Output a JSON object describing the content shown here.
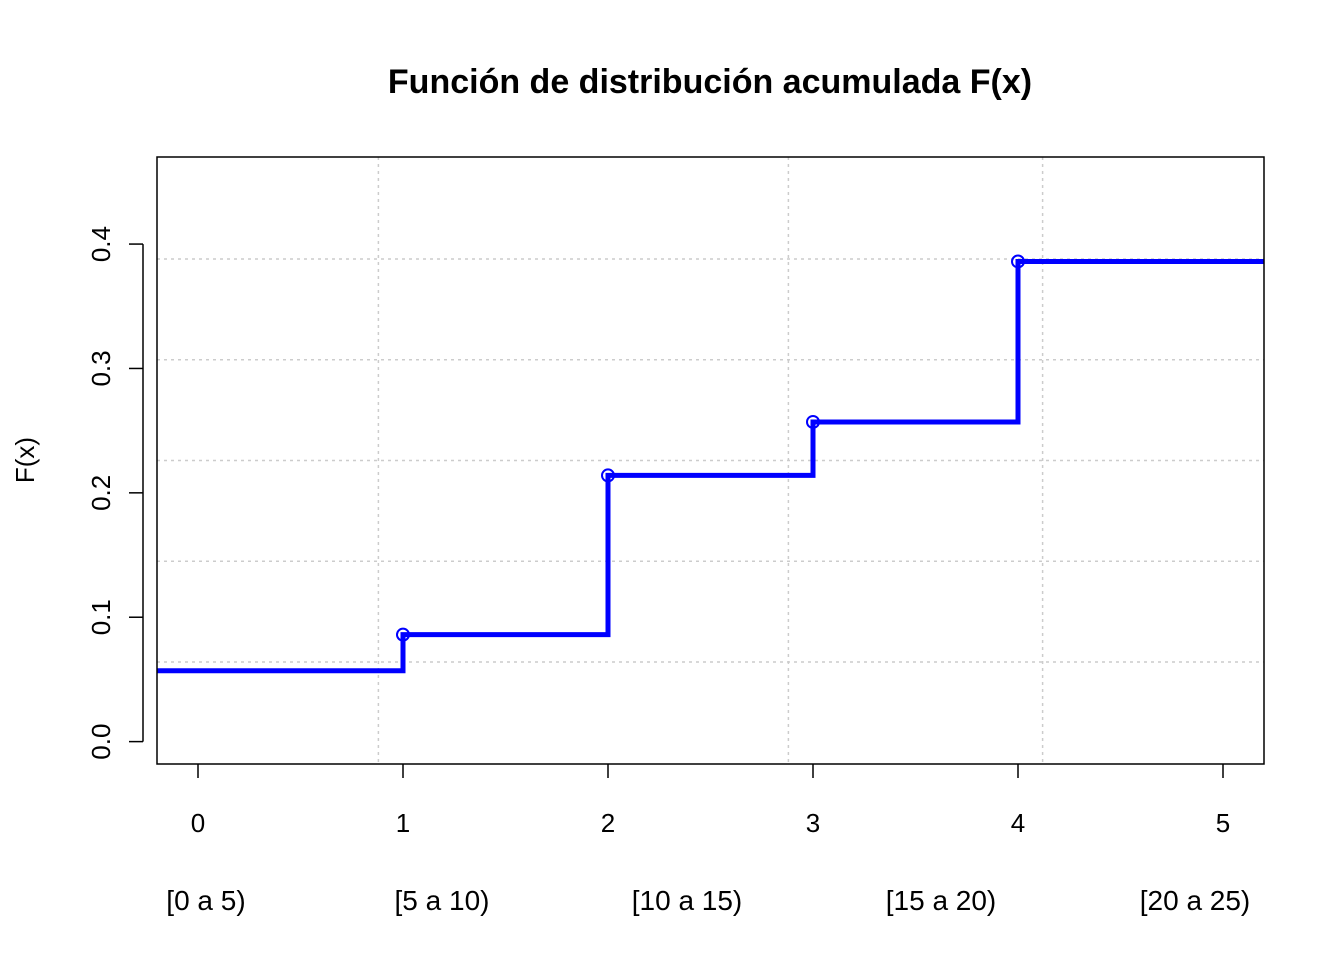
{
  "chart_data": {
    "type": "line",
    "step": true,
    "title": "Función de distribución acumulada F(x)",
    "xlabel": "",
    "ylabel": "F(x)",
    "xlim": [
      -0.2,
      5.2
    ],
    "ylim": [
      -0.018,
      0.47
    ],
    "x_ticks": [
      "0",
      "1",
      "2",
      "3",
      "4",
      "5"
    ],
    "y_ticks": [
      "0.0",
      "0.1",
      "0.2",
      "0.3",
      "0.4"
    ],
    "categories": [
      "[0 a 5)",
      "[5 a 10)",
      "[10 a 15)",
      "[15 a 20)",
      "[20 a 25)"
    ],
    "grid": true,
    "color": "#0000ff",
    "points": [
      {
        "x": 1,
        "y": 0.086
      },
      {
        "x": 2,
        "y": 0.214
      },
      {
        "x": 3,
        "y": 0.257
      },
      {
        "x": 4,
        "y": 0.386
      }
    ],
    "start_value": 0.057,
    "series": [
      {
        "x": [
          0,
          1,
          2,
          3,
          4,
          5
        ],
        "y": [
          0.057,
          0.086,
          0.214,
          0.257,
          0.386,
          0.386
        ]
      }
    ]
  }
}
